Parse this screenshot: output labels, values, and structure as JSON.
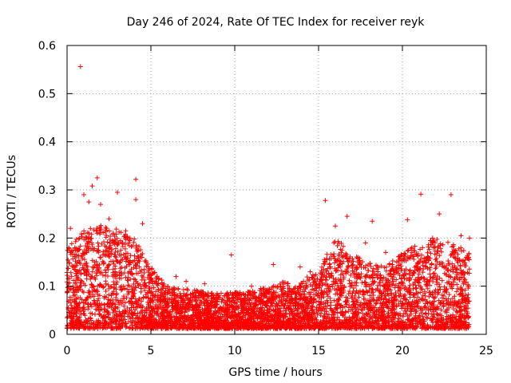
{
  "chart_data": {
    "type": "scatter",
    "title": "Day 246 of 2024, Rate Of TEC Index for receiver reyk",
    "xlabel": "GPS time / hours",
    "ylabel": "ROTI / TECUs",
    "xlim": [
      0,
      25
    ],
    "ylim": [
      0,
      0.6
    ],
    "x_ticks": [
      0,
      5,
      10,
      15,
      20,
      25
    ],
    "x_tick_labels": [
      "0",
      "5",
      "10",
      "15",
      "20",
      "25"
    ],
    "y_ticks": [
      0,
      0.1,
      0.2,
      0.3,
      0.4,
      0.5,
      0.6
    ],
    "y_tick_labels": [
      "0",
      "0.1",
      "0.2",
      "0.3",
      "0.4",
      "0.5",
      "0.6"
    ],
    "grid": true,
    "marker": "+",
    "color": "#ff0000",
    "series": [
      {
        "name": "ROTI",
        "points": [
          [
            0.8,
            0.556
          ],
          [
            4.1,
            0.322
          ],
          [
            1.8,
            0.325
          ],
          [
            1.5,
            0.308
          ],
          [
            1.0,
            0.29
          ],
          [
            1.3,
            0.275
          ],
          [
            3.0,
            0.295
          ],
          [
            4.1,
            0.28
          ],
          [
            22.9,
            0.29
          ],
          [
            21.1,
            0.291
          ],
          [
            15.4,
            0.278
          ],
          [
            16.7,
            0.245
          ],
          [
            18.2,
            0.235
          ],
          [
            22.2,
            0.25
          ],
          [
            20.3,
            0.238
          ],
          [
            0.2,
            0.22
          ],
          [
            2.5,
            0.24
          ],
          [
            3.5,
            0.215
          ],
          [
            4.5,
            0.23
          ],
          [
            9.8,
            0.165
          ],
          [
            12.3,
            0.145
          ],
          [
            13.9,
            0.14
          ],
          [
            16.0,
            0.225
          ],
          [
            17.8,
            0.19
          ],
          [
            19.0,
            0.17
          ],
          [
            21.8,
            0.2
          ],
          [
            23.5,
            0.205
          ],
          [
            24.0,
            0.2
          ],
          [
            6.5,
            0.12
          ],
          [
            8.2,
            0.105
          ],
          [
            11.0,
            0.1
          ],
          [
            14.5,
            0.13
          ],
          [
            5.3,
            0.11
          ],
          [
            7.1,
            0.11
          ],
          [
            2.0,
            0.27
          ]
        ]
      }
    ],
    "envelope_hours": [
      0,
      1,
      2,
      3,
      4,
      5,
      6,
      7,
      8,
      9,
      10,
      11,
      12,
      13,
      14,
      15,
      16,
      17,
      18,
      19,
      20,
      21,
      22,
      23,
      24
    ],
    "envelope_max": [
      0.18,
      0.22,
      0.23,
      0.22,
      0.2,
      0.14,
      0.1,
      0.095,
      0.09,
      0.085,
      0.09,
      0.09,
      0.1,
      0.11,
      0.11,
      0.14,
      0.2,
      0.17,
      0.15,
      0.14,
      0.17,
      0.19,
      0.2,
      0.19,
      0.17
    ]
  }
}
